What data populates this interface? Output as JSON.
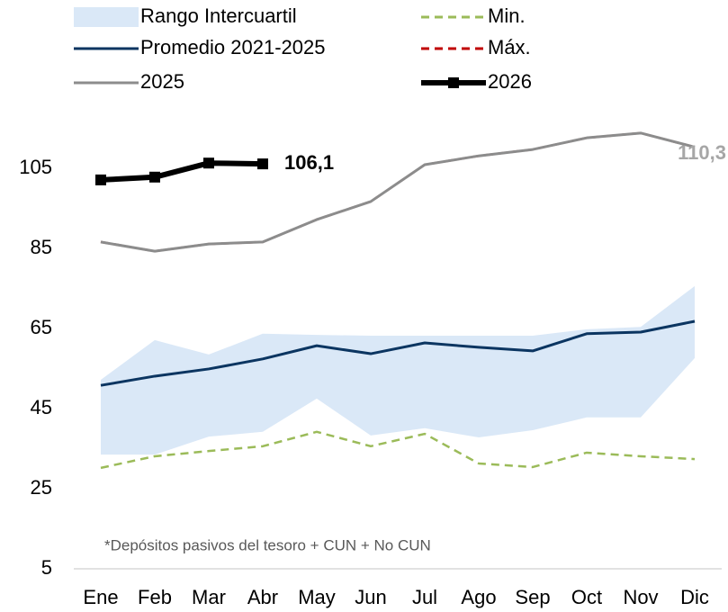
{
  "chart_data": {
    "type": "line",
    "categories": [
      "Ene",
      "Feb",
      "Mar",
      "Abr",
      "May",
      "Jun",
      "Jul",
      "Ago",
      "Sep",
      "Oct",
      "Nov",
      "Dic"
    ],
    "series": [
      {
        "name": "Rango Intercuartil",
        "kind": "range",
        "color": "#dae8f7",
        "low": [
          33.5,
          33.5,
          38.0,
          39.2,
          47.5,
          38.3,
          40.1,
          37.8,
          39.6,
          42.8,
          42.8,
          57.6
        ],
        "high": [
          52.2,
          62.1,
          58.5,
          63.7,
          63.4,
          63.2,
          63.2,
          63.2,
          63.2,
          64.8,
          65.4,
          75.6
        ]
      },
      {
        "name": "Min.",
        "color": "#9bbb59",
        "dash": true,
        "values": [
          30.2,
          33.1,
          34.4,
          35.6,
          39.2,
          35.6,
          38.7,
          31.3,
          30.4,
          34.0,
          33.1,
          32.4
        ]
      },
      {
        "name": "Promedio 2021-2025",
        "color": "#0b3561",
        "values": [
          50.8,
          53.1,
          54.9,
          57.4,
          60.7,
          58.7,
          61.4,
          60.3,
          59.4,
          63.7,
          64.1,
          66.8
        ]
      },
      {
        "name": "Máx.",
        "color": "#c00000",
        "dash": true,
        "values": [
          86.6,
          84.3,
          86.1,
          86.6,
          92.2,
          96.7,
          105.9,
          108.1,
          109.7,
          112.6,
          113.8,
          110.3
        ]
      },
      {
        "name": "2025",
        "color": "#8c8c8c",
        "values": [
          86.6,
          84.3,
          86.1,
          86.6,
          92.2,
          96.7,
          105.9,
          108.1,
          109.7,
          112.6,
          113.8,
          110.3
        ],
        "value_labels": [
          null,
          null,
          null,
          null,
          null,
          null,
          null,
          null,
          null,
          null,
          null,
          "110,3"
        ]
      },
      {
        "name": "2026",
        "color": "#000000",
        "markers": true,
        "values": [
          102.1,
          102.8,
          106.3,
          106.1,
          null,
          null,
          null,
          null,
          null,
          null,
          null,
          null
        ],
        "value_labels": [
          null,
          null,
          null,
          "106,1",
          null,
          null,
          null,
          null,
          null,
          null,
          null,
          null
        ]
      }
    ],
    "annotation": "*Depósitos pasivos del tesoro + CUN + No CUN",
    "ylim": [
      5,
      125
    ],
    "yticks": [
      5,
      25,
      45,
      65,
      85,
      105
    ],
    "grid": false
  }
}
